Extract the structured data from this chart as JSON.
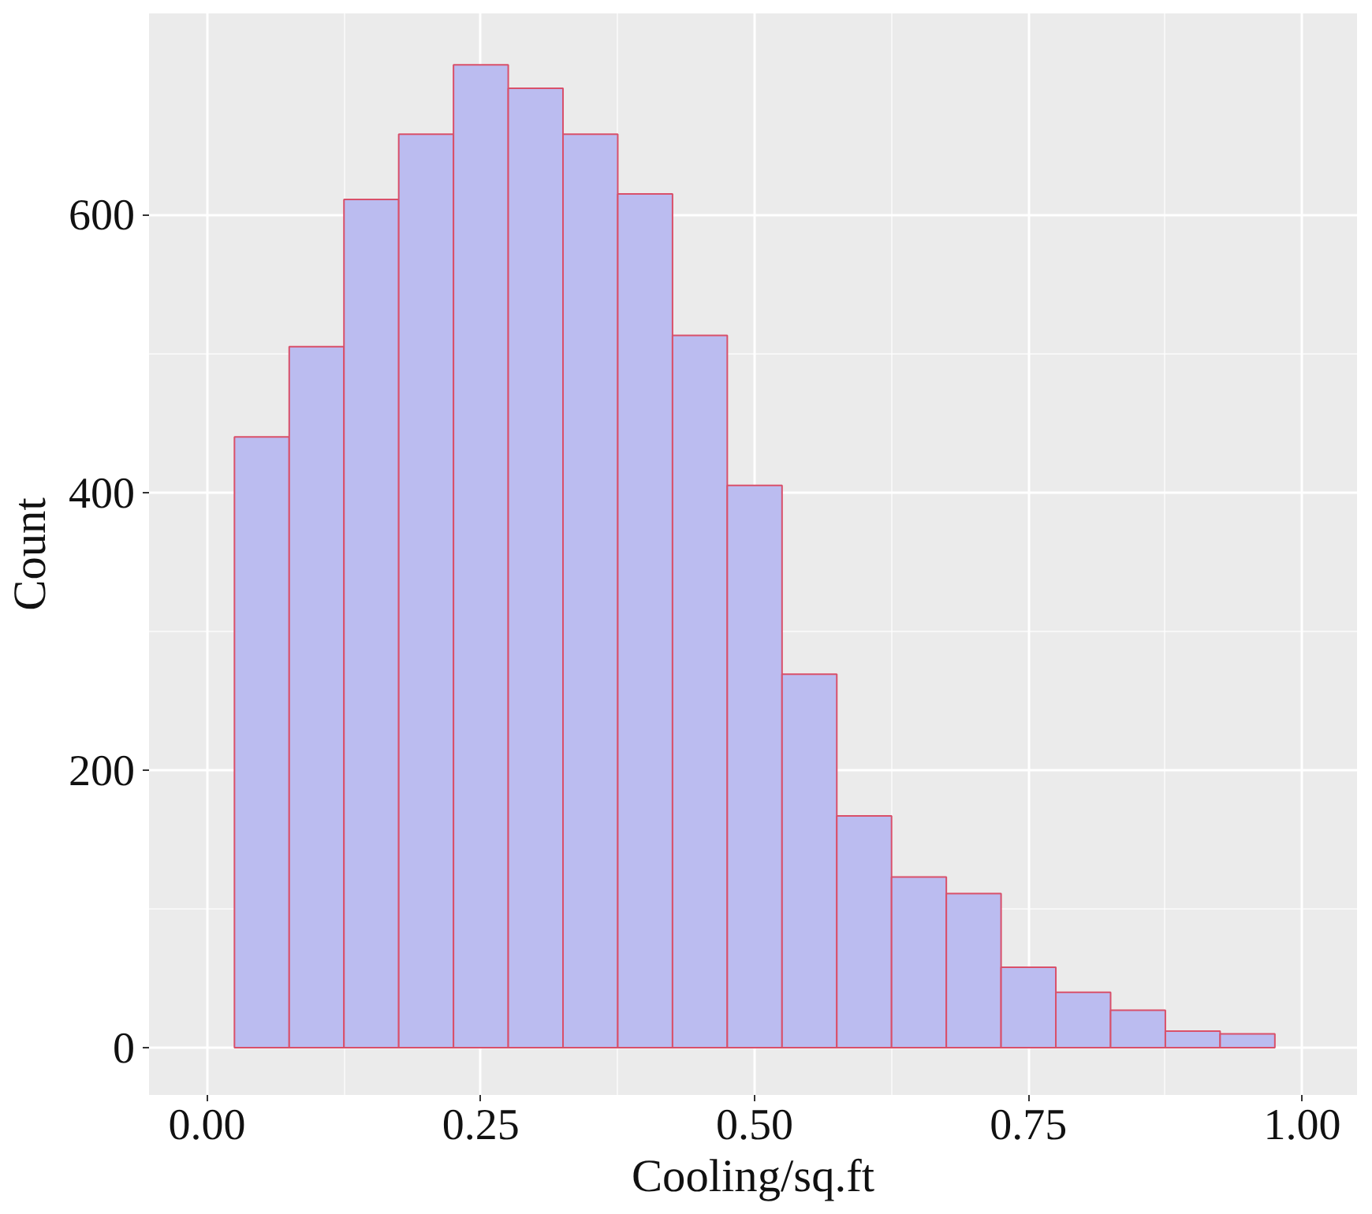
{
  "chart_data": {
    "type": "histogram",
    "xlabel": "Cooling/sq.ft",
    "ylabel": "Count",
    "bins": [
      0.025,
      0.075,
      0.125,
      0.175,
      0.225,
      0.275,
      0.325,
      0.375,
      0.425,
      0.475,
      0.525,
      0.575,
      0.625,
      0.675,
      0.725,
      0.775,
      0.825,
      0.875,
      0.925,
      0.975
    ],
    "values": [
      440,
      505,
      611,
      658,
      708,
      691,
      658,
      615,
      513,
      405,
      269,
      167,
      123,
      111,
      58,
      40,
      27,
      12,
      10
    ],
    "color": "#bbbcf0",
    "xlim": [
      -0.053,
      1.05
    ],
    "ylim": [
      -34,
      745
    ],
    "xticks": [
      {
        "value": 0,
        "label": "0.00"
      },
      {
        "value": 0.25,
        "label": "0.25"
      },
      {
        "value": 0.5,
        "label": "0.50"
      },
      {
        "value": 0.75,
        "label": "0.75"
      },
      {
        "value": 1,
        "label": "1.00"
      }
    ],
    "yticks": [
      0,
      200,
      400,
      600
    ],
    "grid": true
  }
}
